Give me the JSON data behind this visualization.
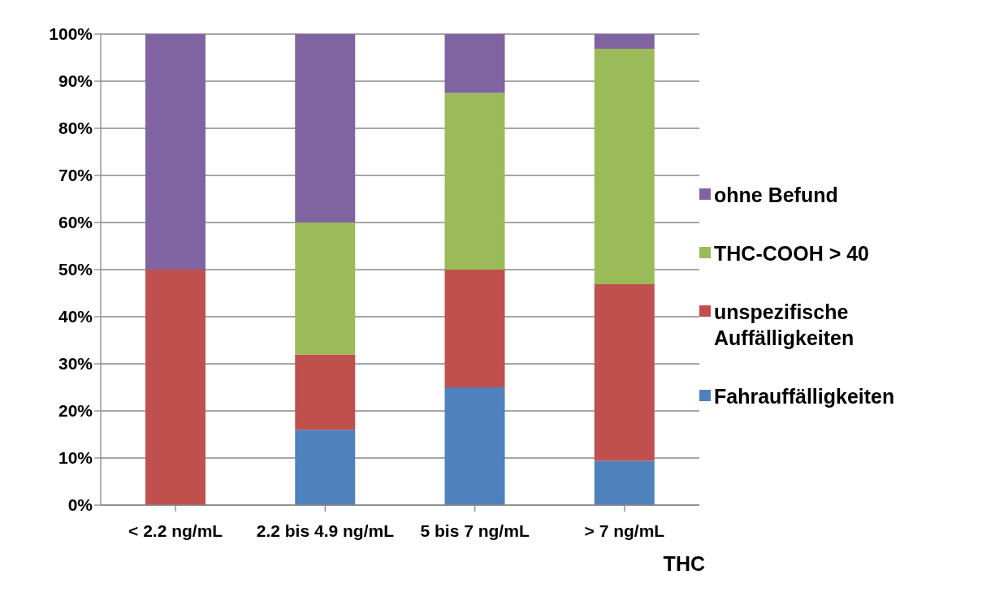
{
  "chart_data": {
    "type": "bar",
    "stacked": true,
    "xlabel": "THC",
    "categories": [
      "< 2.2 ng/mL",
      "2.2 bis 4.9 ng/mL",
      "5 bis 7 ng/mL",
      "> 7 ng/mL"
    ],
    "series": [
      {
        "name": "Fahrauffälligkeiten",
        "color": "#4f81bd",
        "values": [
          0,
          16,
          25,
          9.4
        ]
      },
      {
        "name": "unspezifische Auffälligkeiten",
        "color": "#c0504d",
        "values": [
          50,
          16,
          25,
          37.5
        ]
      },
      {
        "name": "THC-COOH > 40",
        "color": "#9bbb59",
        "values": [
          0,
          28,
          37.5,
          50
        ]
      },
      {
        "name": "ohne Befund",
        "color": "#8064a2",
        "values": [
          50,
          40,
          12.5,
          3.1
        ]
      }
    ],
    "ylim": [
      0,
      100
    ],
    "yticks": [
      {
        "value": 0,
        "label": "0%"
      },
      {
        "value": 10,
        "label": "10%"
      },
      {
        "value": 20,
        "label": "20%"
      },
      {
        "value": 30,
        "label": "30%"
      },
      {
        "value": 40,
        "label": "40%"
      },
      {
        "value": 50,
        "label": "50%"
      },
      {
        "value": 60,
        "label": "60%"
      },
      {
        "value": 70,
        "label": "70%"
      },
      {
        "value": 80,
        "label": "80%"
      },
      {
        "value": 90,
        "label": "90%"
      },
      {
        "value": 100,
        "label": "100%"
      }
    ],
    "grid": "y",
    "legend": "right"
  }
}
